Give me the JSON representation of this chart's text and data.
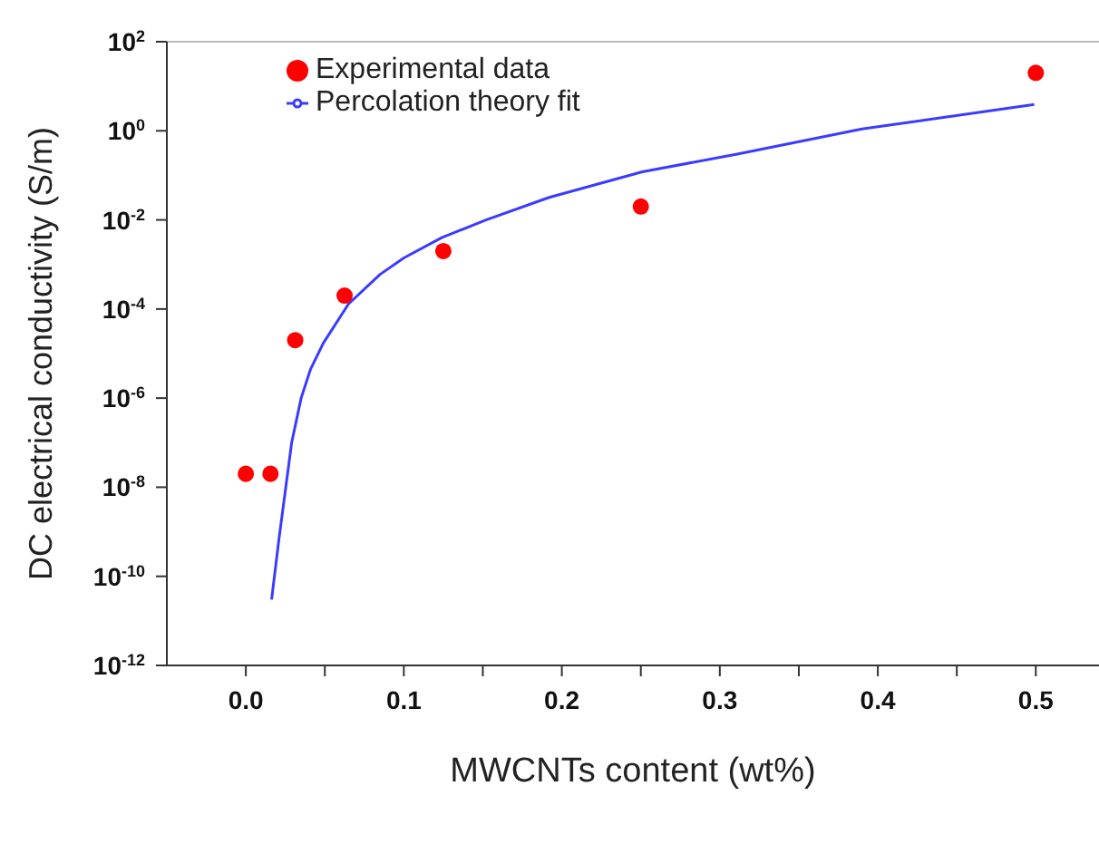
{
  "chart_data": {
    "type": "scatter",
    "xlabel": "MWCNTs content (wt%)",
    "ylabel": "DC electrical conductivity (S/m)",
    "log": "y",
    "xlim": [
      -0.05,
      0.54
    ],
    "xticks": [
      {
        "value": 0,
        "label": "0.0"
      },
      {
        "value": 0.05,
        "label": null
      },
      0.1,
      {
        "value": 0.15,
        "label": null
      },
      0.2,
      {
        "value": 0.25,
        "label": null
      },
      0.3,
      {
        "value": 0.35,
        "label": null
      },
      0.4,
      {
        "value": 0.45,
        "label": null
      },
      0.5
    ],
    "ylim": [
      1e-12,
      100
    ],
    "yticks": [
      {
        "value": 1e-12,
        "label": "10$^{-12}$"
      },
      {
        "value": 1e-10,
        "label": "10$^{-10}$"
      },
      {
        "value": 1e-08,
        "label": "10$^{-8}$"
      },
      {
        "value": 1e-06,
        "label": "10$^{-6}$"
      },
      {
        "value": 0.0001,
        "label": "10$^{-4}$"
      },
      {
        "value": 0.01,
        "label": "10$^{-2}$"
      },
      {
        "value": 1,
        "label": "10$^{0}$"
      },
      {
        "value": 100,
        "label": "10$^{2}$"
      }
    ],
    "legend": "top left",
    "series": [
      {
        "name": "Experimental data",
        "marker": "circle",
        "color": "#ff0000",
        "x": [
          0,
          0.0156,
          0.03125,
          0.0625,
          0.125,
          0.25,
          0.5
        ],
        "values": [
          2e-08,
          2e-08,
          2e-05,
          0.0002,
          0.002,
          0.02,
          20
        ]
      },
      {
        "name": "Percolation theory fit",
        "type": "line",
        "marker": "none",
        "line_style": "solid",
        "color": "#3b3bff",
        "x": [
          0.0163,
          0.021,
          0.029,
          0.035,
          0.041,
          0.049,
          0.065,
          0.085,
          0.1,
          0.124,
          0.152,
          0.192,
          0.251,
          0.311,
          0.39,
          0.499
        ],
        "values": [
          3e-11,
          7e-10,
          1e-07,
          1e-06,
          4.5e-06,
          1.7e-05,
          0.00013,
          0.0006,
          0.0014,
          0.004,
          0.01,
          0.032,
          0.12,
          0.3,
          1.1,
          3.9
        ]
      }
    ]
  }
}
